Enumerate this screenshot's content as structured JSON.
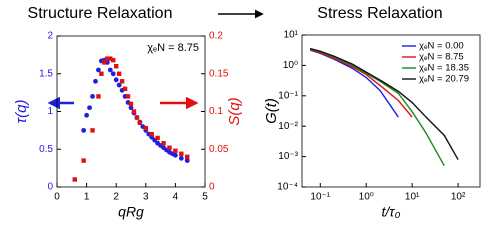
{
  "chart_data": [
    {
      "type": "scatter",
      "title": "Structure Relaxation",
      "xlabel": "qRg",
      "ylabel": "τ(q)",
      "y2label": "S(q)",
      "annotation": "χₑN = 8.75",
      "grid": false,
      "xlim": [
        0,
        5
      ],
      "xticks": [
        0,
        1,
        2,
        3,
        4,
        5
      ],
      "ylim": [
        0,
        2
      ],
      "yticks": [
        0,
        0.5,
        1,
        1.5,
        2
      ],
      "y2lim": [
        0,
        0.2
      ],
      "y2ticks": [
        0,
        0.05,
        0.1,
        0.15,
        0.2
      ],
      "series": [
        {
          "color": "#1f1fe0",
          "marker": "circle",
          "x": [
            0.9,
            1.0,
            1.1,
            1.2,
            1.3,
            1.4,
            1.5,
            1.6,
            1.7,
            1.8,
            1.9,
            2.0,
            2.1,
            2.2,
            2.3,
            2.4,
            2.5,
            2.6,
            2.7,
            2.8,
            2.9,
            3.0,
            3.1,
            3.2,
            3.3,
            3.4,
            3.5,
            3.6,
            3.7,
            3.8,
            3.9,
            4.0,
            4.2,
            4.4
          ],
          "values": [
            0.75,
            0.95,
            1.05,
            1.2,
            1.4,
            1.55,
            1.67,
            1.68,
            1.65,
            1.55,
            1.5,
            1.42,
            1.35,
            1.28,
            1.2,
            1.12,
            1.05,
            0.98,
            0.92,
            0.86,
            0.8,
            0.75,
            0.7,
            0.66,
            0.62,
            0.58,
            0.55,
            0.52,
            0.49,
            0.46,
            0.44,
            0.42,
            0.38,
            0.35
          ]
        },
        {
          "color": "#e01010",
          "marker": "square",
          "axis": "y2",
          "x": [
            0.6,
            0.9,
            1.2,
            1.4,
            1.5,
            1.6,
            1.7,
            1.8,
            1.9,
            2.0,
            2.1,
            2.2,
            2.3,
            2.4,
            2.5,
            2.6,
            2.7,
            2.8,
            3.0,
            3.2,
            3.4,
            3.6,
            3.8,
            4.0,
            4.2,
            4.4
          ],
          "values": [
            0.01,
            0.035,
            0.075,
            0.12,
            0.15,
            0.165,
            0.17,
            0.17,
            0.168,
            0.16,
            0.15,
            0.14,
            0.13,
            0.12,
            0.11,
            0.1,
            0.092,
            0.085,
            0.078,
            0.07,
            0.065,
            0.058,
            0.052,
            0.048,
            0.044,
            0.04
          ]
        }
      ]
    },
    {
      "type": "line",
      "title": "Stress Relaxation",
      "xlabel": "t/τ₀",
      "ylabel": "G(t)",
      "grid": false,
      "xscale": "log",
      "yscale": "log",
      "legend": "upper right",
      "xlim": [
        0.04,
        300
      ],
      "xticks": [
        {
          "value": 0.1,
          "label": "10⁻¹"
        },
        {
          "value": 1,
          "label": "10⁰"
        },
        {
          "value": 10,
          "label": "10¹"
        },
        {
          "value": 100,
          "label": "10²"
        }
      ],
      "ylim": [
        0.0001,
        10
      ],
      "yticks": [
        {
          "value": 0.0001,
          "label": "10⁻⁴"
        },
        {
          "value": 0.001,
          "label": "10⁻³"
        },
        {
          "value": 0.01,
          "label": "10⁻²"
        },
        {
          "value": 0.1,
          "label": "10⁻¹"
        },
        {
          "value": 1,
          "label": "10⁰"
        },
        {
          "value": 10,
          "label": "10¹"
        }
      ],
      "series": [
        {
          "name": "χₑN = 0.00",
          "color": "#1f1fe0",
          "x": [
            0.06,
            0.1,
            0.2,
            0.5,
            1,
            2,
            5
          ],
          "values": [
            3.2,
            2.5,
            1.6,
            0.8,
            0.4,
            0.15,
            0.02
          ]
        },
        {
          "name": "χₑN = 8.75",
          "color": "#e01010",
          "x": [
            0.06,
            0.1,
            0.2,
            0.5,
            1,
            2,
            5,
            10
          ],
          "values": [
            3.3,
            2.6,
            1.7,
            0.9,
            0.5,
            0.22,
            0.07,
            0.02
          ]
        },
        {
          "name": "χₑN = 18.35",
          "color": "#1a8a1a",
          "x": [
            0.06,
            0.1,
            0.2,
            0.5,
            1,
            2,
            5,
            10,
            20,
            50
          ],
          "values": [
            3.5,
            2.8,
            1.9,
            1.0,
            0.55,
            0.3,
            0.12,
            0.03,
            0.006,
            0.0005
          ]
        },
        {
          "name": "χₑN = 20.79",
          "color": "#111111",
          "x": [
            0.06,
            0.1,
            0.2,
            0.5,
            1,
            2,
            5,
            10,
            20,
            50,
            100
          ],
          "values": [
            3.6,
            2.9,
            2.0,
            1.1,
            0.6,
            0.33,
            0.14,
            0.06,
            0.02,
            0.005,
            0.0008
          ]
        }
      ]
    }
  ]
}
